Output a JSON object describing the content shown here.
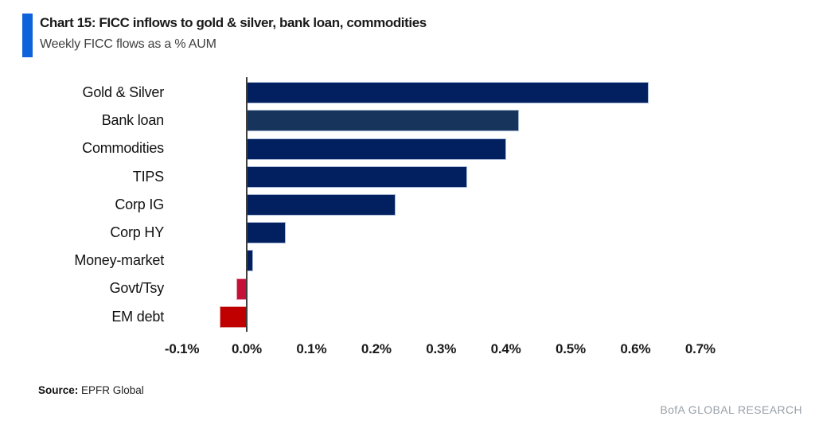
{
  "header": {
    "title": "Chart 15: FICC inflows to gold & silver, bank loan, commodities",
    "subtitle": "Weekly FICC flows as a % AUM",
    "accent_color": "#0e62db"
  },
  "chart_data": {
    "type": "bar",
    "orientation": "horizontal",
    "title": "Chart 15: FICC inflows to gold & silver, bank loan, commodities",
    "subtitle": "Weekly FICC flows as a % AUM",
    "xlabel": "Weekly FICC flows as a % AUM",
    "ylabel": "",
    "unit": "%",
    "grid": false,
    "xlim": [
      -0.1,
      0.7
    ],
    "categories": [
      "Gold & Silver",
      "Bank loan",
      "Commodities",
      "TIPS",
      "Corp IG",
      "Corp HY",
      "Money-market",
      "Govt/Tsy",
      "EM debt"
    ],
    "values": [
      0.62,
      0.42,
      0.4,
      0.34,
      0.23,
      0.06,
      0.01,
      -0.015,
      -0.04
    ],
    "bar_colors": [
      "#02205f",
      "#17345c",
      "#02205f",
      "#02205f",
      "#02205f",
      "#02205f",
      "#02205f",
      "#c41137",
      "#c00000"
    ],
    "bar_border_colors": [
      "#a9bad8",
      "#9fb2cc",
      "#a9bad8",
      "#a9bad8",
      "#a9bad8",
      "#a9bad8",
      "#a9bad8",
      "#e79db0",
      "#e09c9c"
    ],
    "axis_line_color": "#3f3f3f",
    "x_ticks": [
      {
        "label": "-0.1%",
        "value": -0.1
      },
      {
        "label": "0.0%",
        "value": 0.0
      },
      {
        "label": "0.1%",
        "value": 0.1
      },
      {
        "label": "0.2%",
        "value": 0.2
      },
      {
        "label": "0.3%",
        "value": 0.3
      },
      {
        "label": "0.4%",
        "value": 0.4
      },
      {
        "label": "0.5%",
        "value": 0.5
      },
      {
        "label": "0.6%",
        "value": 0.6
      },
      {
        "label": "0.7%",
        "value": 0.7
      }
    ]
  },
  "footer": {
    "source_label": "Source:",
    "source_value": " EPFR Global",
    "brand": "BofA GLOBAL RESEARCH",
    "brand_color": "#98a0a8"
  }
}
